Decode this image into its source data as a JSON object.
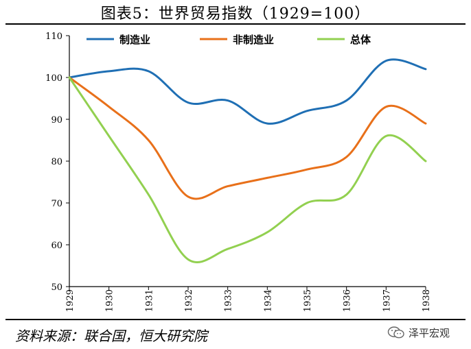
{
  "title": "图表5：世界贸易指数（1929=100）",
  "source": "资料来源：联合国，恒大研究院",
  "watermark": {
    "text": "泽平宏观",
    "icon": "wechat-logo-icon"
  },
  "chart_data": {
    "type": "line",
    "title": "图表5：世界贸易指数（1929=100）",
    "xlabel": "",
    "ylabel": "",
    "x": [
      "1929",
      "1930",
      "1931",
      "1932",
      "1933",
      "1934",
      "1935",
      "1936",
      "1937",
      "1938"
    ],
    "ylim": [
      50,
      110
    ],
    "yticks": [
      50,
      60,
      70,
      80,
      90,
      100,
      110
    ],
    "grid": false,
    "legend_position": "top",
    "series": [
      {
        "name": "制造业",
        "color": "#1f6fb4",
        "values": [
          100,
          101.5,
          101.5,
          94,
          94.5,
          89,
          92,
          94.5,
          104,
          102
        ]
      },
      {
        "name": "非制造业",
        "color": "#e8701a",
        "values": [
          100,
          93,
          85,
          71.5,
          74,
          76,
          78,
          81,
          93,
          89
        ]
      },
      {
        "name": "总体",
        "color": "#92d050",
        "values": [
          100,
          86,
          72,
          56.5,
          59,
          63,
          70,
          72,
          86,
          80
        ]
      }
    ]
  }
}
